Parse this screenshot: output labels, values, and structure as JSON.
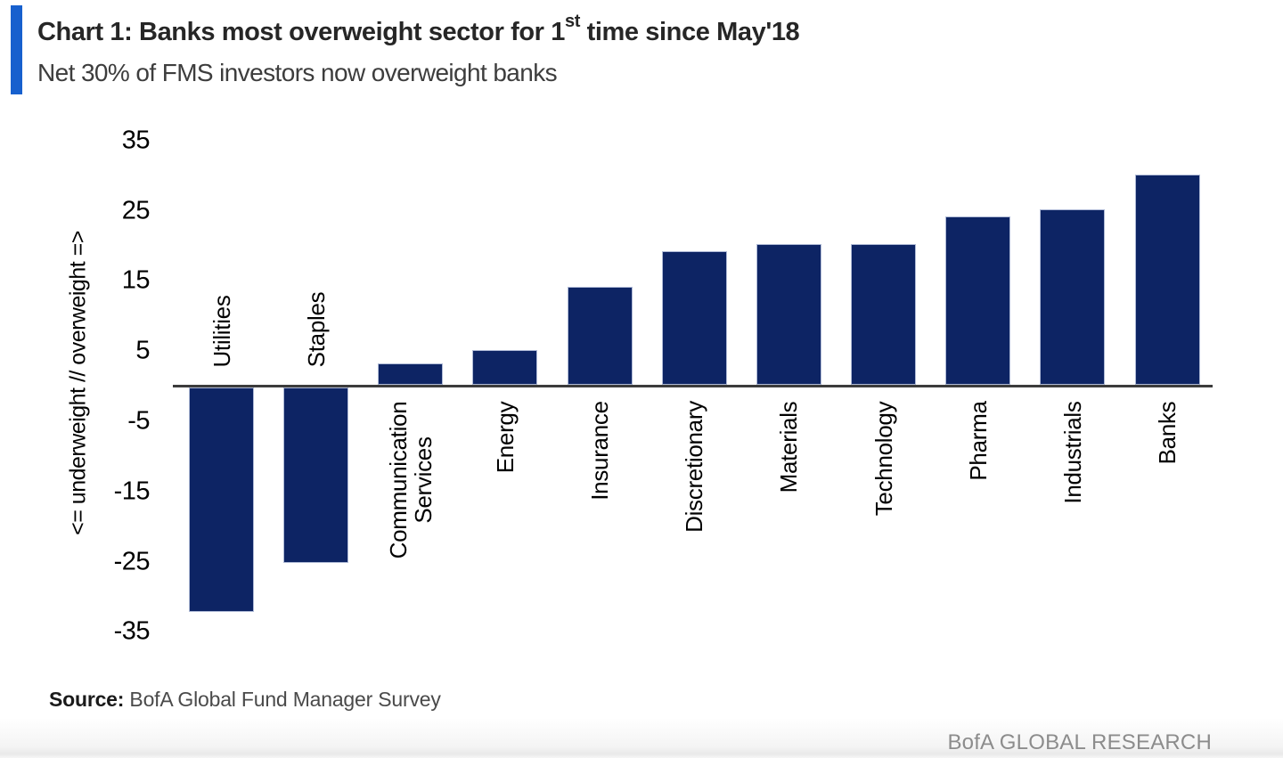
{
  "header": {
    "title_prefix": "Chart 1: Banks most overweight sector for 1",
    "title_superscript": "st",
    "title_suffix": " time since May'18",
    "subtitle": "Net 30% of FMS investors now overweight banks",
    "accent_color": "#1760CE"
  },
  "chart_data": {
    "type": "bar",
    "title": "Chart 1: Banks most overweight sector for 1st time since May'18",
    "subtitle": "Net 30% of FMS investors now overweight banks",
    "categories": [
      "Utilities",
      "Staples",
      "Communication Services",
      "Energy",
      "Insurance",
      "Discretionary",
      "Materials",
      "Technology",
      "Pharma",
      "Industrials",
      "Banks"
    ],
    "values": [
      -32,
      -25,
      3,
      5,
      14,
      19,
      20,
      20,
      24,
      25,
      30
    ],
    "ylabel": "<= underweight // overweight =>",
    "yticks": [
      35,
      25,
      15,
      5,
      -5,
      -15,
      -25,
      -35
    ],
    "ylim": [
      -35,
      35
    ],
    "xlabel": "",
    "grid": false,
    "legend": false,
    "bar_color": "#0D2464",
    "units": "net % of FMS investors"
  },
  "source": {
    "label": "Source:",
    "text": " BofA Global Fund Manager Survey"
  },
  "footer": {
    "text": "BofA GLOBAL RESEARCH"
  }
}
